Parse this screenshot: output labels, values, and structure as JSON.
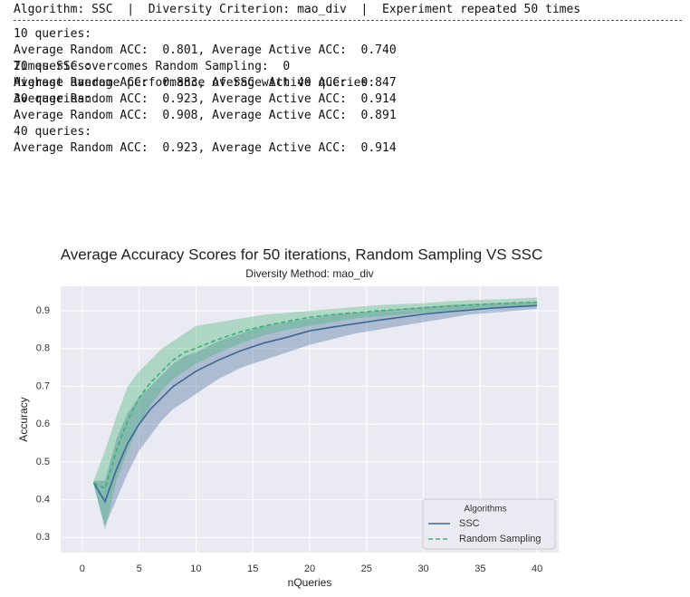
{
  "console": {
    "header": "Algorithm: SSC  |  Diversity Criterion: mao_div  |  Experiment repeated 50 times",
    "blocks": [
      {
        "query": "10 queries:",
        "result": "Average Random ACC:  0.801, Average Active ACC:  0.740"
      },
      {
        "query": "20 queries:",
        "result": "Average Random ACC:  0.883, Average Active ACC:  0.847"
      },
      {
        "query": "30 queries:",
        "result": "Average Random ACC:  0.908, Average Active ACC:  0.891"
      },
      {
        "query": "40 queries:",
        "result": "Average Random ACC:  0.923, Average Active ACC:  0.914"
      }
    ],
    "summary": [
      "Times SSC overcomes Random Sampling:  0",
      "Highest average performance of SSC with 40 queries:",
      "Average Random ACC:  0.923, Average Active ACC:  0.914"
    ]
  },
  "chart_data": {
    "type": "line",
    "title": "Average Accuracy Scores for 50 iterations, Random Sampling VS SSC",
    "subtitle": "Diversity Method: mao_div",
    "x_label": "nQueries",
    "y_label": "Accuracy",
    "legend_title": "Algorithms",
    "legend_position": "lower right",
    "grid": true,
    "x": [
      1,
      2,
      3,
      4,
      5,
      6,
      7,
      8,
      9,
      10,
      12,
      14,
      16,
      18,
      20,
      22,
      24,
      26,
      28,
      30,
      32,
      34,
      36,
      38,
      40
    ],
    "series": [
      {
        "name": "SSC",
        "color": "#3c6896",
        "dash": false,
        "values": [
          0.445,
          0.395,
          0.48,
          0.55,
          0.6,
          0.64,
          0.67,
          0.7,
          0.72,
          0.74,
          0.77,
          0.795,
          0.815,
          0.83,
          0.847,
          0.857,
          0.866,
          0.875,
          0.883,
          0.891,
          0.897,
          0.902,
          0.907,
          0.911,
          0.914
        ],
        "lower": [
          0.44,
          0.33,
          0.4,
          0.47,
          0.53,
          0.57,
          0.61,
          0.64,
          0.66,
          0.68,
          0.72,
          0.75,
          0.77,
          0.79,
          0.81,
          0.825,
          0.84,
          0.85,
          0.86,
          0.87,
          0.88,
          0.89,
          0.895,
          0.9,
          0.905
        ],
        "upper": [
          0.45,
          0.45,
          0.56,
          0.63,
          0.67,
          0.7,
          0.73,
          0.76,
          0.78,
          0.79,
          0.82,
          0.84,
          0.86,
          0.87,
          0.88,
          0.89,
          0.895,
          0.9,
          0.905,
          0.91,
          0.915,
          0.918,
          0.92,
          0.922,
          0.924
        ]
      },
      {
        "name": "Random Sampling",
        "color": "#3cb371",
        "dash": true,
        "values": [
          0.445,
          0.43,
          0.53,
          0.61,
          0.67,
          0.71,
          0.74,
          0.77,
          0.79,
          0.801,
          0.825,
          0.845,
          0.86,
          0.872,
          0.883,
          0.89,
          0.895,
          0.9,
          0.904,
          0.908,
          0.912,
          0.915,
          0.918,
          0.921,
          0.923
        ],
        "lower": [
          0.44,
          0.32,
          0.45,
          0.53,
          0.6,
          0.65,
          0.69,
          0.72,
          0.74,
          0.76,
          0.79,
          0.815,
          0.835,
          0.85,
          0.86,
          0.87,
          0.88,
          0.885,
          0.89,
          0.895,
          0.9,
          0.905,
          0.91,
          0.913,
          0.915
        ],
        "upper": [
          0.45,
          0.53,
          0.62,
          0.7,
          0.74,
          0.77,
          0.8,
          0.82,
          0.84,
          0.86,
          0.87,
          0.88,
          0.89,
          0.895,
          0.9,
          0.905,
          0.91,
          0.915,
          0.918,
          0.92,
          0.925,
          0.928,
          0.93,
          0.932,
          0.935
        ]
      }
    ],
    "xlim": [
      -1.9,
      41.9
    ],
    "ylim": [
      0.26,
      0.965
    ],
    "xticks": [
      0,
      5,
      10,
      15,
      20,
      25,
      30,
      35,
      40
    ],
    "yticks": [
      0.3,
      0.4,
      0.5,
      0.6,
      0.7,
      0.8,
      0.9
    ]
  }
}
